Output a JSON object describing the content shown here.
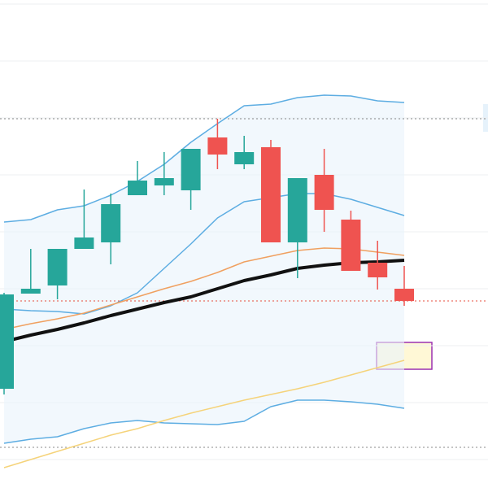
{
  "chart_data": {
    "type": "candlestick",
    "categories": [
      null,
      null,
      null,
      null,
      null,
      null,
      null,
      null,
      null,
      null,
      null,
      null,
      null,
      null,
      null,
      null
    ],
    "open": [
      122,
      239,
      249,
      294,
      302,
      360,
      372,
      366,
      431,
      398,
      419,
      302,
      385,
      330,
      277,
      245
    ],
    "high": [
      240,
      294,
      294,
      367,
      362,
      402,
      413,
      417,
      454,
      433,
      428,
      381,
      417,
      341,
      304,
      273
    ],
    "low": [
      115,
      239,
      232,
      294,
      275,
      360,
      360,
      342,
      392,
      392,
      302,
      258,
      315,
      267,
      244,
      224
    ],
    "close": [
      238,
      245,
      294,
      308,
      349,
      378,
      381,
      417,
      410,
      413,
      302,
      381,
      342,
      267,
      259,
      230
    ],
    "up_color": "#26a69a",
    "down_color": "#ef5350",
    "ylim": [
      0,
      600
    ],
    "gridlines": [
      595,
      525,
      455,
      385,
      315,
      245,
      175,
      105,
      35
    ],
    "series": [
      {
        "color": "#5dade2",
        "width": 1.5,
        "values": [
          327,
          330,
          342,
          347,
          360,
          377,
          398,
          425,
          448,
          470,
          472,
          480,
          483,
          482,
          476,
          474
        ]
      },
      {
        "color": "#5dade2",
        "width": 1.5,
        "values": [
          220,
          218,
          217,
          214,
          224,
          240,
          270,
          300,
          332,
          352,
          357,
          362,
          362,
          355,
          345,
          335
        ]
      },
      {
        "color": "#5dade2",
        "width": 1.5,
        "values": [
          55,
          60,
          63,
          73,
          80,
          83,
          80,
          79,
          78,
          82,
          100,
          108,
          108,
          106,
          103,
          98
        ]
      },
      {
        "color": "#f0a060",
        "width": 1.5,
        "values": [
          195,
          202,
          208,
          215,
          225,
          235,
          245,
          254,
          265,
          278,
          285,
          292,
          295,
          294,
          290,
          286
        ]
      },
      {
        "color": "#111111",
        "width": 4,
        "values": [
          180,
          188,
          195,
          203,
          212,
          220,
          228,
          235,
          245,
          255,
          262,
          270,
          274,
          277,
          278,
          280
        ]
      },
      {
        "color": "#f5d37a",
        "width": 1.5,
        "values": [
          25,
          35,
          45,
          55,
          65,
          73,
          83,
          92,
          100,
          108,
          115,
          122,
          130,
          139,
          148,
          157
        ]
      }
    ],
    "reference_lines": [
      {
        "value": 454,
        "color": "#888888"
      },
      {
        "value": 230,
        "color": "#e74c3c"
      },
      {
        "value": 50,
        "color": "#888888"
      }
    ]
  }
}
